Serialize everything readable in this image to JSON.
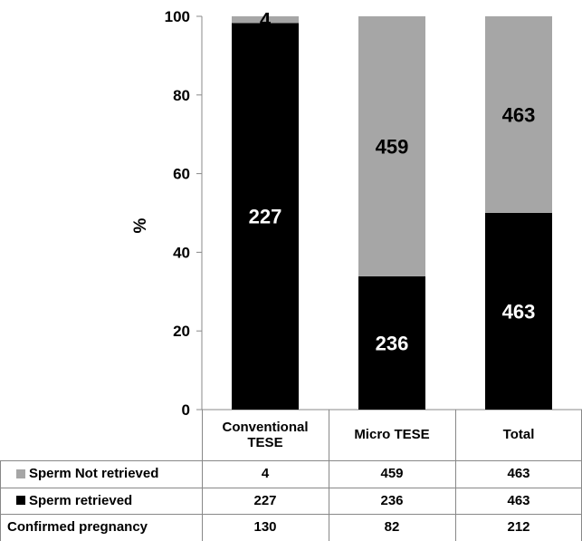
{
  "chart_data": {
    "type": "bar",
    "stacked": true,
    "categories": [
      "Conventional\nTESE",
      "Micro TESE",
      "Total"
    ],
    "ylabel": "%",
    "ylim": [
      0,
      100
    ],
    "yticks": [
      0,
      20,
      40,
      60,
      80,
      100
    ],
    "grid": false,
    "colors": {
      "Sperm retrieved": "#000000",
      "Sperm Not retrieved": "#a6a6a6"
    },
    "series": [
      {
        "name": "Sperm retrieved",
        "percent": [
          98.3,
          33.9,
          50.0
        ],
        "labels": [
          "227",
          "236",
          "463"
        ]
      },
      {
        "name": "Sperm Not retrieved",
        "percent": [
          1.7,
          66.1,
          50.0
        ],
        "labels": [
          "4",
          "459",
          "463"
        ]
      }
    ]
  },
  "table": {
    "columns": [
      "Conventional\nTESE",
      "Micro TESE",
      "Total"
    ],
    "rows": [
      {
        "label": "Sperm Not retrieved",
        "swatch": "#a6a6a6",
        "values": [
          "4",
          "459",
          "463"
        ]
      },
      {
        "label": "Sperm retrieved",
        "swatch": "#000000",
        "values": [
          "227",
          "236",
          "463"
        ]
      },
      {
        "label": "Confirmed pregnancy",
        "swatch": "",
        "values": [
          "130",
          "82",
          "212"
        ]
      }
    ]
  }
}
